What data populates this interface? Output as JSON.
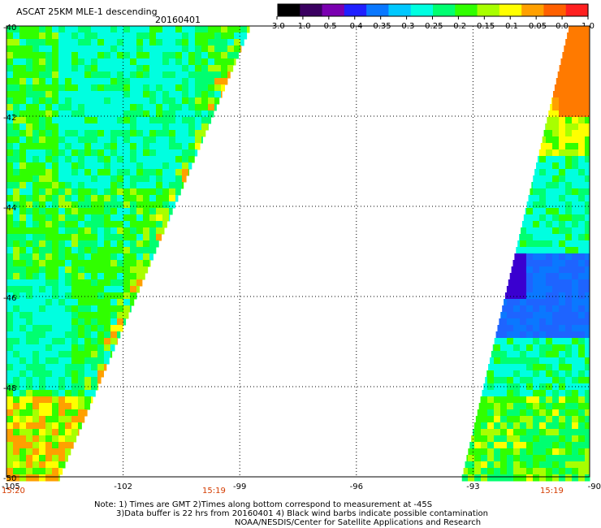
{
  "header": {
    "title": "ASCAT 25KM MLE-1 descending",
    "date": "20160401"
  },
  "colorbar": {
    "labels": [
      "-3.0",
      "-1.0",
      "-0.5",
      "-0.4",
      "-0.35",
      "-0.3",
      "-0.25",
      "-0.2",
      "-0.15",
      "-0.1",
      "-0.05",
      "0.0",
      "1.0"
    ],
    "colors": [
      "#000000",
      "#3a0060",
      "#7a00b0",
      "#2020ff",
      "#0a78ff",
      "#00c8ff",
      "#00ffe0",
      "#00ff70",
      "#30ff00",
      "#a8ff00",
      "#ffff00",
      "#ffa000",
      "#ff6000",
      "#ff2020"
    ]
  },
  "map": {
    "lon_ticks": [
      "-105",
      "-102",
      "-99",
      "-96",
      "-93",
      "-90"
    ],
    "lat_ticks": [
      "-40",
      "-42",
      "-44",
      "-46",
      "-48",
      "-50"
    ],
    "lon_range": [
      -105,
      -90
    ],
    "lat_range": [
      -50,
      -40
    ],
    "times": [
      "15:20",
      "15:19",
      "15:19"
    ],
    "swath_colors": [
      "#00ffe0",
      "#00ff70",
      "#30ff00",
      "#a8ff00",
      "#ffff00",
      "#ffa000",
      "#ff7a00",
      "#1e64ff",
      "#0a78ff",
      "#3a00d0"
    ]
  },
  "footer": {
    "note_line1": "Note: 1) Times are GMT 2)Times along bottom correspond to measurement at -45S",
    "note_line2": "3)Data buffer is 22 hrs from 20160401 4) Black wind barbs indicate possible contamination",
    "note_line3": "NOAA/NESDIS/Center for Satellite Applications and Research"
  }
}
